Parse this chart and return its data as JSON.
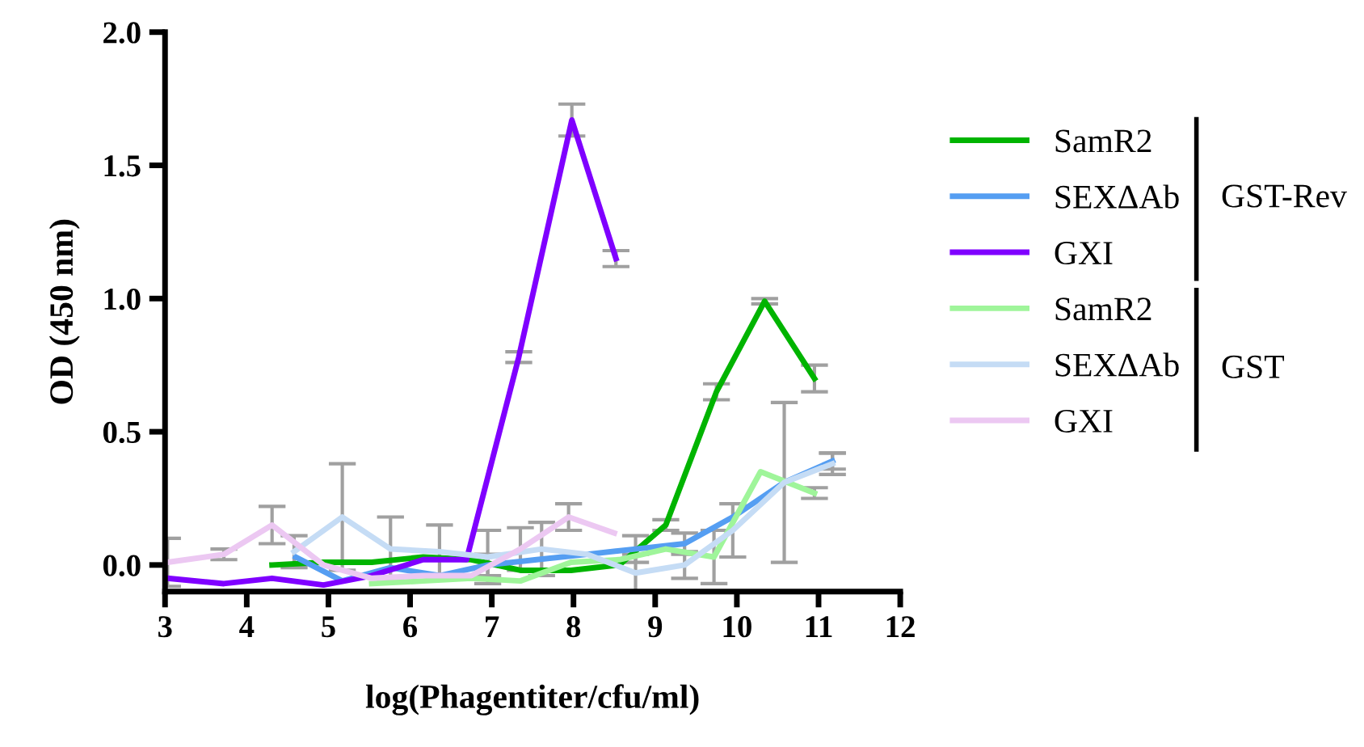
{
  "chart_data": {
    "type": "line",
    "xlabel": "log(Phagentiter/cfu/ml)",
    "ylabel": "OD (450 nm)",
    "xlim": [
      3,
      12
    ],
    "ylim": [
      -0.1,
      2.0
    ],
    "xticks": [
      3,
      4,
      5,
      6,
      7,
      8,
      9,
      10,
      11,
      12
    ],
    "yticks": [
      {
        "value": 0,
        "label": "0.0"
      },
      0.5,
      {
        "value": 1,
        "label": "1.0"
      },
      1.5,
      {
        "value": 2,
        "label": "2.0"
      }
    ],
    "grid": false,
    "legend": "right",
    "marker": "none",
    "line_style": "solid",
    "annotations": [
      "GST-Rev",
      "GST"
    ],
    "series": [
      {
        "name": "SamR2",
        "color": "#00b400",
        "x": [
          4.31,
          4.94,
          5.53,
          6.16,
          6.75,
          7.35,
          7.97,
          8.56,
          9.13,
          9.75,
          10.34,
          10.95
        ],
        "values": [
          0.0,
          0.01,
          0.01,
          0.03,
          0.02,
          -0.02,
          -0.02,
          0.0,
          0.15,
          0.65,
          0.99,
          0.7
        ],
        "errors": [
          null,
          null,
          null,
          null,
          null,
          null,
          null,
          null,
          0.02,
          0.03,
          0.01,
          0.05
        ]
      },
      {
        "name": "SEXΔAb",
        "color": "#559ef2",
        "x": [
          4.6,
          5.17,
          5.76,
          6.36,
          6.95,
          7.55,
          8.17,
          8.76,
          9.36,
          9.95,
          10.58,
          11.17
        ],
        "values": [
          0.03,
          -0.06,
          -0.01,
          -0.04,
          0.0,
          0.02,
          0.04,
          0.06,
          0.08,
          0.18,
          0.31,
          0.39
        ],
        "errors": [
          null,
          null,
          null,
          null,
          0.04,
          null,
          null,
          0.05,
          0.04,
          null,
          null,
          0.03
        ]
      },
      {
        "name": "GXI",
        "color": "#7f00ff",
        "x": [
          3.03,
          3.72,
          4.31,
          4.94,
          5.53,
          6.16,
          6.69,
          7.33,
          7.98,
          8.52
        ],
        "values": [
          -0.05,
          -0.07,
          -0.05,
          -0.075,
          -0.04,
          0.02,
          0.02,
          0.78,
          1.67,
          1.15
        ],
        "errors": [
          null,
          null,
          null,
          null,
          null,
          null,
          null,
          0.02,
          0.06,
          0.03
        ]
      },
      {
        "name": "SamR2",
        "color": "#9ff59a",
        "x": [
          5.53,
          6.16,
          6.75,
          7.35,
          7.97,
          8.56,
          9.13,
          9.72,
          10.29,
          10.95
        ],
        "values": [
          -0.07,
          -0.06,
          -0.05,
          -0.06,
          0.01,
          0.02,
          0.06,
          0.03,
          0.35,
          0.27
        ],
        "errors": [
          null,
          null,
          null,
          null,
          null,
          null,
          null,
          0.1,
          null,
          0.02
        ]
      },
      {
        "name": "SEXΔAb",
        "color": "#c5dcf5",
        "x": [
          4.58,
          5.17,
          5.76,
          6.36,
          6.95,
          7.61,
          8.17,
          8.76,
          9.36,
          9.95,
          10.58,
          11.17
        ],
        "values": [
          0.05,
          0.18,
          0.06,
          0.05,
          0.03,
          0.06,
          0.04,
          -0.03,
          0.0,
          0.13,
          0.31,
          0.38
        ],
        "errors": [
          0.06,
          0.2,
          0.12,
          0.1,
          0.1,
          0.1,
          null,
          0.07,
          0.05,
          0.1,
          0.3,
          0.04
        ]
      },
      {
        "name": "GXI",
        "color": "#ecc8f2",
        "x": [
          3.03,
          3.72,
          4.31,
          4.94,
          5.53,
          6.16,
          6.75,
          7.35,
          7.94,
          8.5
        ],
        "values": [
          0.01,
          0.04,
          0.15,
          0.0,
          -0.05,
          -0.04,
          -0.04,
          0.06,
          0.18,
          0.12
        ],
        "errors": [
          0.09,
          0.02,
          0.07,
          null,
          null,
          null,
          null,
          0.08,
          0.05,
          null
        ]
      }
    ]
  }
}
